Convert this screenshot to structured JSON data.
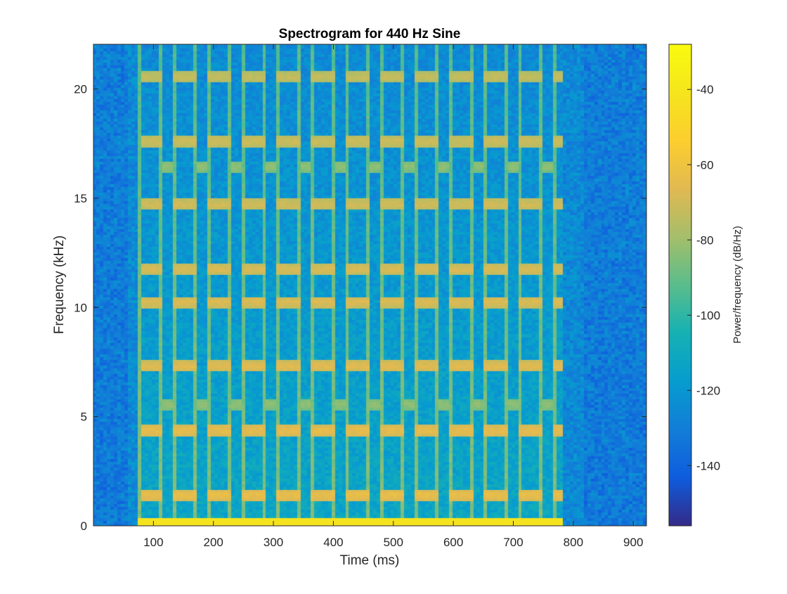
{
  "chart_data": {
    "type": "heatmap",
    "title": "Spectrogram for 440 Hz Sine",
    "xlabel": "Time (ms)",
    "ylabel": "Frequency (kHz)",
    "colorbar_label": "Power/frequency (dB/Hz)",
    "colormap": "parula",
    "xlim": [
      0,
      922
    ],
    "ylim": [
      0,
      22.05
    ],
    "clim": [
      -156,
      -28
    ],
    "xticks": [
      100,
      200,
      300,
      400,
      500,
      600,
      700,
      800,
      900
    ],
    "yticks": [
      0,
      5,
      10,
      15,
      20
    ],
    "colorbar_ticks": [
      -40,
      -60,
      -80,
      -100,
      -120,
      -140
    ],
    "noise_floor_db": -125,
    "signal_region_ms": [
      75,
      785
    ],
    "tone_pattern": {
      "period_ms": 57.5,
      "tone_duration_ms": 37,
      "gap_ms": 20,
      "tone_start_ms": [
        78,
        135,
        193,
        250,
        308,
        365,
        423,
        480,
        538,
        595,
        653,
        710,
        768
      ],
      "in_tone_harmonics_khz": [
        1.45,
        4.4,
        7.35,
        10.3,
        11.8,
        14.75,
        17.65,
        20.6
      ],
      "in_gap_harmonics_khz": [
        5.6,
        16.5
      ],
      "tone_harmonic_level_db": -62,
      "gap_harmonic_level_db": -82,
      "transient_level_db": -85
    }
  }
}
